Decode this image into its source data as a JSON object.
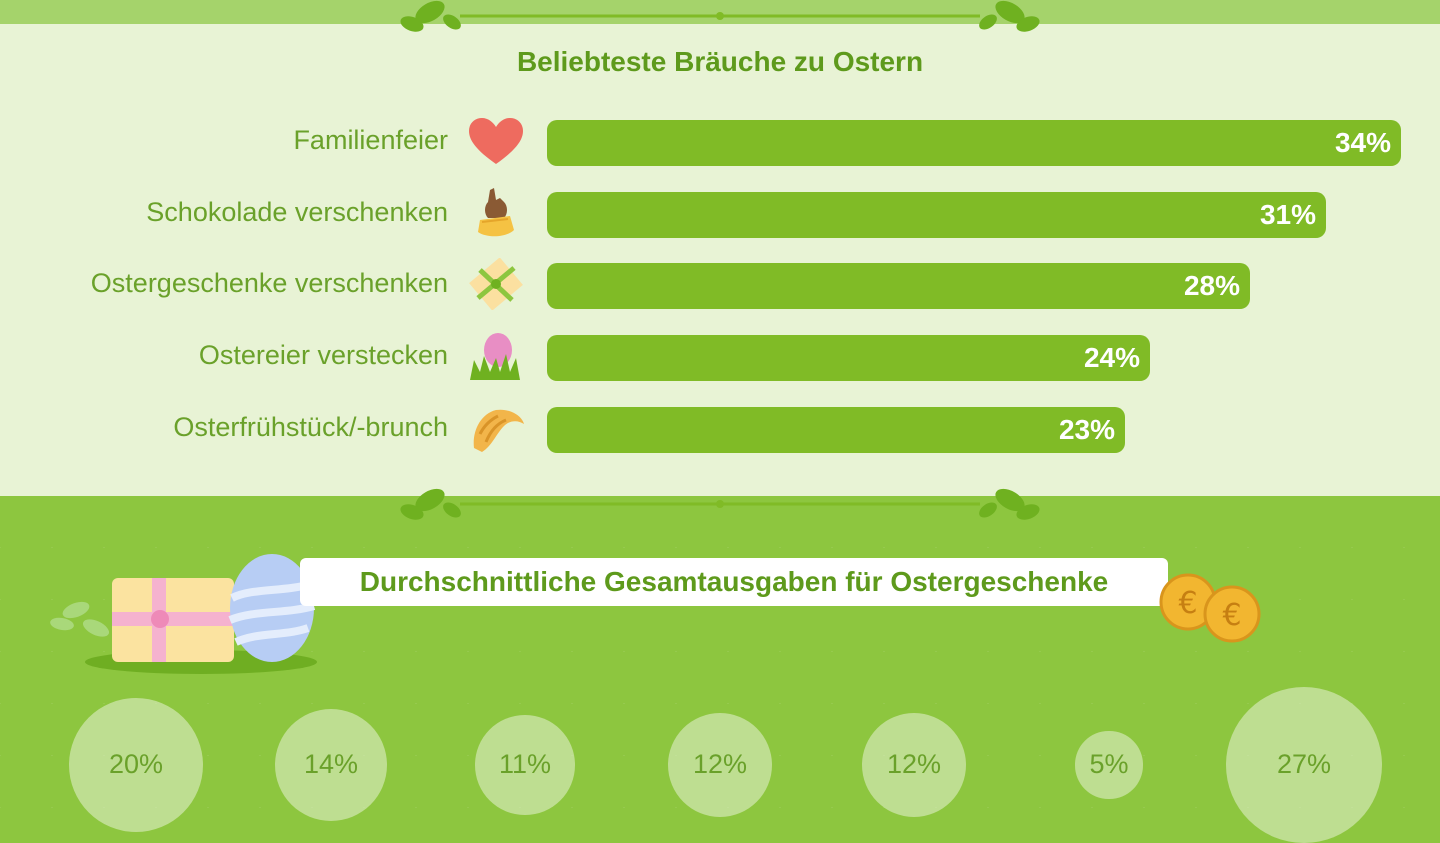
{
  "chart_data": [
    {
      "type": "bar",
      "orientation": "horizontal",
      "title": "Beliebteste Bräuche zu Ostern",
      "categories": [
        "Familienfeier",
        "Schokolade verschenken",
        "Ostergeschenke verschenken",
        "Ostereier verstecken",
        "Osterfrühstück/-brunch"
      ],
      "values": [
        34,
        31,
        28,
        24,
        23
      ],
      "value_labels": [
        "34%",
        "31%",
        "28%",
        "24%",
        "23%"
      ],
      "icons": [
        "heart-icon",
        "chocolate-bunny-icon",
        "gift-box-icon",
        "easter-egg-grass-icon",
        "croissant-icon"
      ],
      "xlim": [
        0,
        34
      ],
      "grid": false,
      "bar_color": "#80bb26"
    },
    {
      "type": "bubble",
      "title": "Durchschnittliche Gesamtausgaben für Ostergeschenke",
      "values": [
        20,
        14,
        11,
        12,
        12,
        5,
        27
      ],
      "value_labels": [
        "20%",
        "14%",
        "11%",
        "12%",
        "12%",
        "5%",
        "27%"
      ]
    }
  ],
  "colors": {
    "accent": "#80bb26",
    "panel": "#e8f3d5",
    "background": "#8dc63f",
    "title": "#5e9a1c",
    "heart": "#ee6b5f",
    "coin": "#f2b630"
  }
}
